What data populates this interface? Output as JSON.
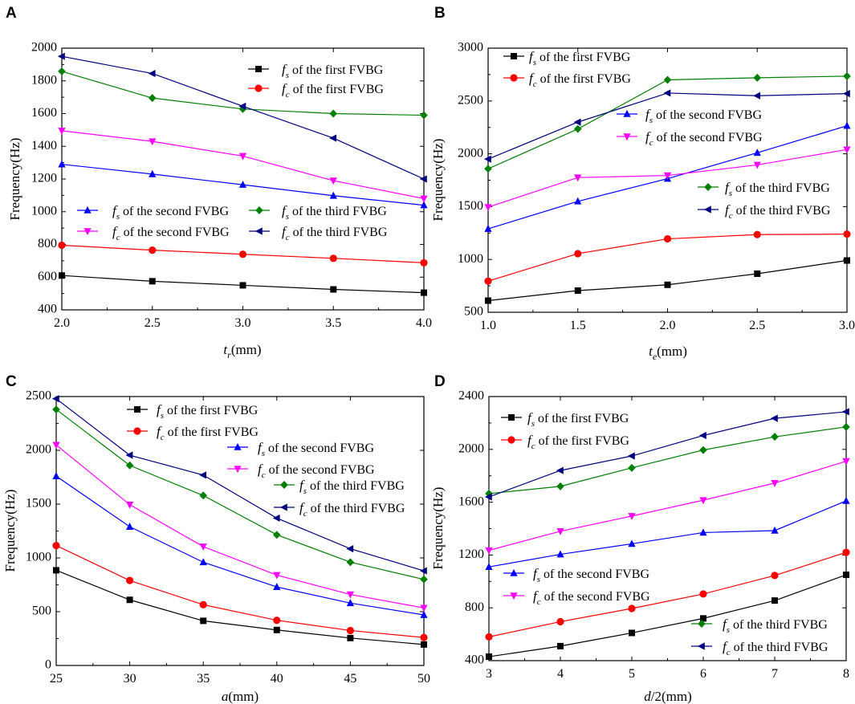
{
  "chart_data": [
    {
      "panel": "A",
      "type": "line",
      "xlabel_main": "t",
      "xlabel_sub": "r",
      "xlabel_unit": "(mm)",
      "ylabel": "Frequency(Hz)",
      "xlim": [
        2.0,
        4.0
      ],
      "ylim": [
        400,
        2000
      ],
      "xticks": [
        2.0,
        2.5,
        3.0,
        3.5,
        4.0
      ],
      "xtick_labels": [
        "2.0",
        "2.5",
        "3.0",
        "3.5",
        "4.0"
      ],
      "yticks": [
        400,
        600,
        800,
        1000,
        1200,
        1400,
        1600,
        1800,
        2000
      ],
      "ytick_labels": [
        "400",
        "600",
        "800",
        "1000",
        "1200",
        "1400",
        "1600",
        "1800",
        "2000"
      ],
      "x": [
        2.0,
        2.5,
        3.0,
        3.5,
        4.0
      ],
      "legend": "two-column",
      "series": [
        {
          "name": "fs of the first FVBG",
          "var": "f",
          "sub": "s",
          "text": " of the first FVBG",
          "values": [
            610,
            575,
            550,
            525,
            505
          ]
        },
        {
          "name": "fc of the first FVBG",
          "var": "f",
          "sub": "c",
          "text": " of the first FVBG",
          "values": [
            795,
            765,
            740,
            715,
            688
          ]
        },
        {
          "name": "fs of the second FVBG",
          "var": "f",
          "sub": "s",
          "text": " of the second FVBG",
          "values": [
            1290,
            1230,
            1165,
            1098,
            1040
          ]
        },
        {
          "name": "fc of the second FVBG",
          "var": "f",
          "sub": "c",
          "text": " of the second FVBG",
          "values": [
            1495,
            1430,
            1340,
            1190,
            1080
          ]
        },
        {
          "name": "fs of the third FVBG",
          "var": "f",
          "sub": "s",
          "text": " of the third FVBG",
          "values": [
            1858,
            1695,
            1628,
            1600,
            1590
          ]
        },
        {
          "name": "fc of the third FVBG",
          "var": "f",
          "sub": "c",
          "text": " of the third FVBG",
          "values": [
            1950,
            1845,
            1645,
            1450,
            1200
          ]
        }
      ]
    },
    {
      "panel": "B",
      "type": "line",
      "xlabel_main": "t",
      "xlabel_sub": "e",
      "xlabel_unit": "(mm)",
      "ylabel": "Frequency(Hz)",
      "xlim": [
        1.0,
        3.0
      ],
      "ylim": [
        500,
        3000
      ],
      "xticks": [
        1.0,
        1.5,
        2.0,
        2.5,
        3.0
      ],
      "xtick_labels": [
        "1.0",
        "1.5",
        "2.0",
        "2.5",
        "3.0"
      ],
      "yticks": [
        500,
        1000,
        1500,
        2000,
        2500,
        3000
      ],
      "ytick_labels": [
        "500",
        "1000",
        "1500",
        "2000",
        "2500",
        "3000"
      ],
      "x": [
        1.0,
        1.5,
        2.0,
        2.5,
        3.0
      ],
      "legend": "stacked-left",
      "series": [
        {
          "name": "fs of the first FVBG",
          "var": "f",
          "sub": "s",
          "text": " of the first FVBG",
          "values": [
            610,
            705,
            760,
            865,
            990
          ]
        },
        {
          "name": "fc of the first FVBG",
          "var": "f",
          "sub": "c",
          "text": " of the first FVBG",
          "values": [
            795,
            1055,
            1195,
            1235,
            1240
          ]
        },
        {
          "name": "fs of the second FVBG",
          "var": "f",
          "sub": "s",
          "text": " of the second FVBG",
          "values": [
            1290,
            1550,
            1765,
            2010,
            2265
          ]
        },
        {
          "name": "fc of the second FVBG",
          "var": "f",
          "sub": "c",
          "text": " of the second FVBG",
          "values": [
            1495,
            1775,
            1795,
            1895,
            2040
          ]
        },
        {
          "name": "fs of the third FVBG",
          "var": "f",
          "sub": "s",
          "text": " of the third FVBG",
          "values": [
            1858,
            2235,
            2700,
            2720,
            2735
          ]
        },
        {
          "name": "fc of the third FVBG",
          "var": "f",
          "sub": "c",
          "text": " of the third FVBG",
          "values": [
            1950,
            2300,
            2575,
            2550,
            2570
          ]
        }
      ]
    },
    {
      "panel": "C",
      "type": "line",
      "xlabel_main": "a",
      "xlabel_sub": "",
      "xlabel_unit": "(mm)",
      "ylabel": "Frequency(Hz)",
      "xlim": [
        25,
        50
      ],
      "ylim": [
        0,
        2500
      ],
      "xticks": [
        25,
        30,
        35,
        40,
        45,
        50
      ],
      "xtick_labels": [
        "25",
        "30",
        "35",
        "40",
        "45",
        "50"
      ],
      "yticks": [
        0,
        500,
        1000,
        1500,
        2000,
        2500
      ],
      "ytick_labels": [
        "0",
        "500",
        "1000",
        "1500",
        "2000",
        "2500"
      ],
      "x": [
        25,
        30,
        35,
        40,
        45,
        50
      ],
      "legend": "stacked-center",
      "series": [
        {
          "name": "fs of the first FVBG",
          "var": "f",
          "sub": "s",
          "text": " of the first FVBG",
          "values": [
            885,
            610,
            415,
            330,
            255,
            195
          ]
        },
        {
          "name": "fc of the first FVBG",
          "var": "f",
          "sub": "c",
          "text": " of the first FVBG",
          "values": [
            1115,
            790,
            565,
            420,
            325,
            260
          ]
        },
        {
          "name": "fs of the second FVBG",
          "var": "f",
          "sub": "s",
          "text": " of the second FVBG",
          "values": [
            1760,
            1290,
            960,
            730,
            580,
            470
          ]
        },
        {
          "name": "fc of the second FVBG",
          "var": "f",
          "sub": "c",
          "text": " of the second FVBG",
          "values": [
            2050,
            1495,
            1105,
            840,
            660,
            535
          ]
        },
        {
          "name": "fs of the third FVBG",
          "var": "f",
          "sub": "s",
          "text": " of the third FVBG",
          "values": [
            2380,
            1860,
            1580,
            1215,
            960,
            800
          ]
        },
        {
          "name": "fc of the third FVBG",
          "var": "f",
          "sub": "c",
          "text": " of the third FVBG",
          "values": [
            2480,
            1955,
            1770,
            1370,
            1085,
            880
          ]
        }
      ]
    },
    {
      "panel": "D",
      "type": "line",
      "xlabel_main": "d",
      "xlabel_sub": "",
      "xlabel_unit": "/2(mm)",
      "ylabel": "Frequency(Hz)",
      "xlim": [
        3,
        8
      ],
      "ylim": [
        400,
        2400
      ],
      "xticks": [
        3,
        4,
        5,
        6,
        7,
        8
      ],
      "xtick_labels": [
        "3",
        "4",
        "5",
        "6",
        "7",
        "8"
      ],
      "yticks": [
        400,
        800,
        1200,
        1600,
        2000,
        2400
      ],
      "ytick_labels": [
        "400",
        "800",
        "1200",
        "1600",
        "2000",
        "2400"
      ],
      "x": [
        3,
        4,
        5,
        6,
        7,
        8
      ],
      "legend": "stacked-split",
      "series": [
        {
          "name": "fs of the first FVBG",
          "var": "f",
          "sub": "s",
          "text": " of the first FVBG",
          "values": [
            430,
            510,
            610,
            720,
            855,
            1050
          ]
        },
        {
          "name": "fc of the first FVBG",
          "var": "f",
          "sub": "c",
          "text": " of the first FVBG",
          "values": [
            580,
            695,
            795,
            905,
            1045,
            1220
          ]
        },
        {
          "name": "fs of the second FVBG",
          "var": "f",
          "sub": "s",
          "text": " of the second FVBG",
          "values": [
            1110,
            1205,
            1285,
            1370,
            1385,
            1610
          ]
        },
        {
          "name": "fc of the second FVBG",
          "var": "f",
          "sub": "c",
          "text": " of the second FVBG",
          "values": [
            1235,
            1380,
            1495,
            1615,
            1745,
            1910
          ]
        },
        {
          "name": "fs of the third FVBG",
          "var": "f",
          "sub": "s",
          "text": " of the third FVBG",
          "values": [
            1665,
            1720,
            1860,
            1995,
            2095,
            2170
          ]
        },
        {
          "name": "fc of the third FVBG",
          "var": "f",
          "sub": "c",
          "text": " of the third FVBG",
          "values": [
            1640,
            1840,
            1950,
            2105,
            2235,
            2285
          ]
        }
      ]
    }
  ],
  "style": {
    "series_colors": [
      "#000000",
      "#ff0000",
      "#0000ff",
      "#ff00ff",
      "#008000",
      "#000080"
    ],
    "series_markers": [
      "square",
      "circle",
      "triangle-up",
      "triangle-down",
      "diamond",
      "triangle-left"
    ]
  }
}
